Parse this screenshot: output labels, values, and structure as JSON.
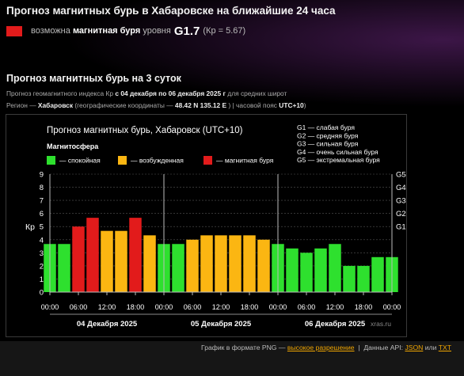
{
  "page": {
    "title": "Прогноз магнитных бурь в Хабаровске на ближайшие 24 часа",
    "storm_prefix": "возможна",
    "storm_bold": "магнитная буря",
    "storm_mid": "уровня",
    "storm_level": "G1.7",
    "storm_kp": "(Кр = 5.67)",
    "storm_color": "#e21b1b",
    "section_title": "Прогноз магнитных бурь на 3 суток",
    "meta1_pre": "Прогноз геомагнитного индекса Кр",
    "meta1_bold": "с 04 декабря по 06 декабря 2025 г",
    "meta1_post": "для средних широт",
    "meta2_pre": "Регион —",
    "meta2_region": "Хабаровск",
    "meta2_mid": "(географические координаты —",
    "meta2_coords": "48.42 N 135.12 E",
    "meta2_tz_pre": ") | часовой пояс",
    "meta2_tz": "UTC+10",
    "meta2_end": ")"
  },
  "footer": {
    "png_text": "График в формате PNG —",
    "hires": "высокое разрешение",
    "sep": "|",
    "api_text": "Данные API:",
    "json": "JSON",
    "or": "или",
    "txt": "TXT"
  },
  "chart_data": {
    "type": "bar",
    "title": "Прогноз магнитных бурь, Хабаровск (UTC+10)",
    "legend_title": "Магнитосфера",
    "legend": [
      {
        "label": "— спокойная",
        "color": "#2ee02e"
      },
      {
        "label": "— возбужденная",
        "color": "#fbb612"
      },
      {
        "label": "— магнитная буря",
        "color": "#e21b1b"
      }
    ],
    "g_legend": [
      "G1 — слабая буря",
      "G2 — средняя буря",
      "G3 — сильная буря",
      "G4 — очень сильная буря",
      "G5 — экстремальная буря"
    ],
    "ylabel": "Кр",
    "ylim": [
      0,
      9
    ],
    "yticks": [
      "0",
      "1",
      "2",
      "3",
      "4",
      "5",
      "6",
      "7",
      "8",
      "9"
    ],
    "g_ticks": [
      {
        "label": "G1",
        "kp": 5
      },
      {
        "label": "G2",
        "kp": 6
      },
      {
        "label": "G3",
        "kp": 7
      },
      {
        "label": "G4",
        "kp": 8
      },
      {
        "label": "G5",
        "kp": 9
      }
    ],
    "x_tick_labels": [
      "00:00",
      "06:00",
      "12:00",
      "18:00",
      "00:00",
      "06:00",
      "12:00",
      "18:00",
      "00:00",
      "06:00",
      "12:00",
      "18:00",
      "00:00"
    ],
    "days": [
      "04 Декабря 2025",
      "05 Декабря 2025",
      "06 Декабря 2025"
    ],
    "values": [
      3.67,
      3.67,
      5.0,
      5.67,
      4.67,
      4.67,
      5.67,
      4.33,
      3.67,
      3.67,
      4.0,
      4.33,
      4.33,
      4.33,
      4.33,
      4.0,
      3.67,
      3.33,
      3.0,
      3.33,
      3.67,
      2.0,
      2.0,
      2.67,
      2.67
    ],
    "colors": {
      "quiet": "#2ee02e",
      "active": "#fbb612",
      "storm": "#e21b1b"
    },
    "watermark": "xras.ru",
    "grid": true
  }
}
